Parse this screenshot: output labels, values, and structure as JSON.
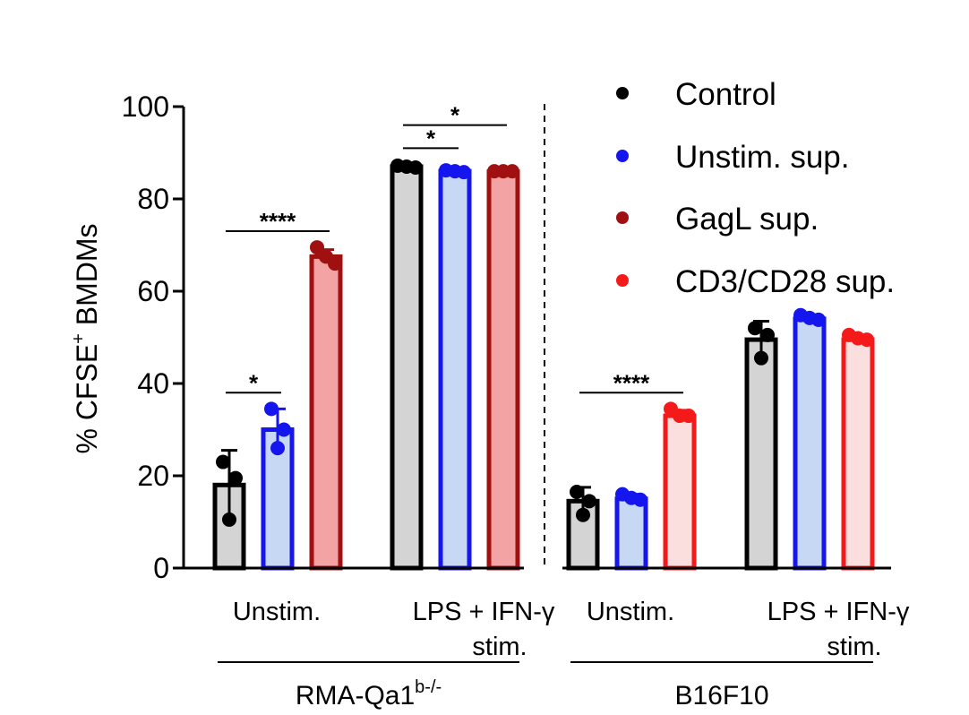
{
  "chart_data": {
    "type": "bar",
    "ylabel_main": "% CFSE",
    "ylabel_sup": "+",
    "ylabel_rest": " BMDMs",
    "ylim": [
      0,
      100
    ],
    "yticks": [
      "0",
      "20",
      "40",
      "60",
      "80",
      "100"
    ],
    "ytick_values": [
      0,
      20,
      40,
      60,
      80,
      100
    ],
    "series": [
      {
        "key": "control",
        "name": "Control",
        "dot_color": "#000000",
        "edge_color": "#000000",
        "fill_color": "#d4d4d4"
      },
      {
        "key": "unstim_sup",
        "name": "Unstim. sup.",
        "dot_color": "#1515ee",
        "edge_color": "#1515ee",
        "fill_color": "#c6d8f3"
      },
      {
        "key": "gagl_sup",
        "name": "GagL sup.",
        "dot_color": "#a01010",
        "edge_color": "#a01010",
        "fill_color": "#f3a3a3"
      },
      {
        "key": "cd3cd28_sup",
        "name": "CD3/CD28 sup.",
        "dot_color": "#f41a1a",
        "edge_color": "#f41a1a",
        "fill_color": "#fbdede"
      }
    ],
    "categories": [
      {
        "label": "Unstim.",
        "label2": "",
        "group": 0,
        "bars": [
          {
            "series": "control",
            "mean": 18.0,
            "sd": 7.5,
            "points": [
              23.0,
              19.5,
              10.5
            ]
          },
          {
            "series": "unstim_sup",
            "mean": 30.0,
            "sd": 4.5,
            "points": [
              34.5,
              30.0,
              26.0
            ]
          },
          {
            "series": "gagl_sup",
            "mean": 67.5,
            "sd": 1.5,
            "points": [
              69.5,
              67.5,
              66.0
            ]
          }
        ]
      },
      {
        "label": "LPS + IFN-γ",
        "label2": "stim.",
        "group": 0,
        "bars": [
          {
            "series": "control",
            "mean": 87.0,
            "sd": 0.4,
            "points": [
              87.2,
              87.0,
              86.8
            ]
          },
          {
            "series": "unstim_sup",
            "mean": 86.0,
            "sd": 0.4,
            "points": [
              86.2,
              86.0,
              85.8
            ]
          },
          {
            "series": "gagl_sup",
            "mean": 85.9,
            "sd": 0.2,
            "points": [
              86.0,
              86.0,
              86.0
            ]
          }
        ]
      },
      {
        "label": "Unstim.",
        "label2": "",
        "group": 1,
        "bars": [
          {
            "series": "control",
            "mean": 14.5,
            "sd": 3.0,
            "points": [
              16.5,
              14.5,
              11.5
            ]
          },
          {
            "series": "unstim_sup",
            "mean": 15.0,
            "sd": 1.0,
            "points": [
              16.0,
              15.2,
              14.8
            ]
          },
          {
            "series": "cd3cd28_sup",
            "mean": 33.0,
            "sd": 1.2,
            "points": [
              34.5,
              33.0,
              33.0
            ]
          }
        ]
      },
      {
        "label": "LPS + IFN-γ",
        "label2": "stim.",
        "group": 1,
        "bars": [
          {
            "series": "control",
            "mean": 49.5,
            "sd": 4.0,
            "points": [
              52.0,
              50.5,
              45.5
            ]
          },
          {
            "series": "unstim_sup",
            "mean": 54.0,
            "sd": 0.8,
            "points": [
              54.8,
              54.2,
              53.8
            ]
          },
          {
            "series": "cd3cd28_sup",
            "mean": 49.5,
            "sd": 0.8,
            "points": [
              50.5,
              49.8,
              49.5
            ]
          }
        ]
      }
    ],
    "groups": [
      {
        "label": "RMA-Qa1",
        "sup": "b-/-"
      },
      {
        "label": "B16F10",
        "sup": ""
      }
    ],
    "significance": [
      {
        "cat": 0,
        "from": 0,
        "to": 1,
        "y": 38,
        "label": "*"
      },
      {
        "cat": 0,
        "from": 0,
        "to": 2,
        "y": 73,
        "label": "****"
      },
      {
        "cat": 1,
        "from": 0,
        "to": 1,
        "y": 91,
        "label": "*"
      },
      {
        "cat": 1,
        "from": 0,
        "to": 2,
        "y": 96,
        "label": "*"
      },
      {
        "cat": 2,
        "from": 0,
        "to": 2,
        "y": 38,
        "label": "****"
      }
    ]
  }
}
